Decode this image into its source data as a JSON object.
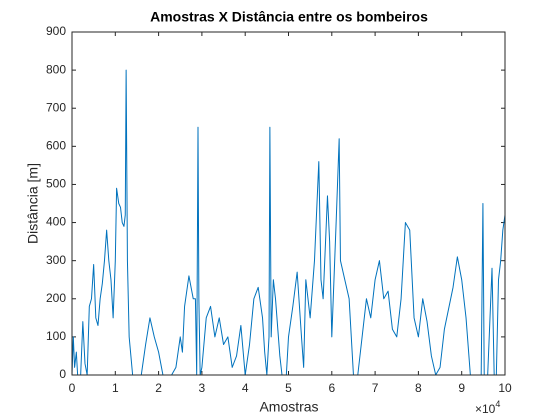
{
  "chart_data": {
    "type": "line",
    "title": "Amostras X Distância entre os bombeiros",
    "x_label": "Amostras",
    "y_label": "Distância [m]",
    "x_multiplier": {
      "base": "×10",
      "exponent": "4"
    },
    "color": "#0072bd",
    "xlim": [
      0,
      10
    ],
    "xticks": [
      0,
      1,
      2,
      3,
      4,
      5,
      6,
      7,
      8,
      9,
      10
    ],
    "ylim": [
      0,
      900
    ],
    "yticks": [
      0,
      100,
      200,
      300,
      400,
      500,
      600,
      700,
      800,
      900
    ],
    "grid": false,
    "x": [
      0,
      0.03,
      0.06,
      0.1,
      0.13,
      0.2,
      0.25,
      0.3,
      0.35,
      0.4,
      0.45,
      0.5,
      0.55,
      0.6,
      0.65,
      0.7,
      0.75,
      0.8,
      0.85,
      0.9,
      0.95,
      1.0,
      1.03,
      1.08,
      1.12,
      1.16,
      1.2,
      1.23,
      1.25,
      1.28,
      1.32,
      1.36,
      1.4,
      1.6,
      1.7,
      1.8,
      1.9,
      2.0,
      2.1,
      2.3,
      2.4,
      2.5,
      2.55,
      2.6,
      2.7,
      2.8,
      2.85,
      2.88,
      2.91,
      2.93,
      2.96,
      3.0,
      3.1,
      3.2,
      3.3,
      3.4,
      3.5,
      3.6,
      3.7,
      3.8,
      3.9,
      4.0,
      4.1,
      4.2,
      4.3,
      4.4,
      4.45,
      4.5,
      4.55,
      4.57,
      4.6,
      4.65,
      4.7,
      4.8,
      4.85,
      4.95,
      5.0,
      5.1,
      5.2,
      5.3,
      5.35,
      5.4,
      5.5,
      5.6,
      5.7,
      5.75,
      5.8,
      5.9,
      5.95,
      6.0,
      6.1,
      6.17,
      6.2,
      6.3,
      6.4,
      6.5,
      6.6,
      6.7,
      6.8,
      6.9,
      7.0,
      7.1,
      7.2,
      7.3,
      7.4,
      7.5,
      7.6,
      7.7,
      7.8,
      7.9,
      8.0,
      8.1,
      8.2,
      8.3,
      8.4,
      8.5,
      8.6,
      8.8,
      8.9,
      9.0,
      9.1,
      9.2,
      9.45,
      9.49,
      9.52,
      9.6,
      9.7,
      9.75,
      9.8,
      9.85,
      9.9,
      9.95,
      10.0
    ],
    "values": [
      0,
      100,
      20,
      60,
      0,
      0,
      140,
      30,
      0,
      180,
      200,
      290,
      150,
      130,
      200,
      240,
      300,
      380,
      300,
      250,
      150,
      300,
      490,
      450,
      440,
      400,
      390,
      420,
      800,
      300,
      100,
      50,
      0,
      0,
      80,
      150,
      100,
      60,
      0,
      0,
      20,
      100,
      60,
      180,
      260,
      200,
      200,
      0,
      650,
      200,
      0,
      20,
      150,
      180,
      100,
      150,
      80,
      100,
      20,
      50,
      130,
      0,
      80,
      200,
      230,
      150,
      60,
      0,
      100,
      650,
      100,
      250,
      200,
      50,
      0,
      0,
      100,
      180,
      270,
      100,
      20,
      250,
      150,
      300,
      560,
      250,
      200,
      470,
      350,
      100,
      400,
      620,
      300,
      250,
      200,
      0,
      0,
      100,
      200,
      150,
      250,
      300,
      200,
      220,
      120,
      100,
      200,
      400,
      380,
      150,
      100,
      200,
      140,
      50,
      0,
      20,
      120,
      230,
      310,
      250,
      150,
      0,
      0,
      450,
      0,
      0,
      280,
      0,
      0,
      250,
      300,
      380,
      420
    ]
  }
}
